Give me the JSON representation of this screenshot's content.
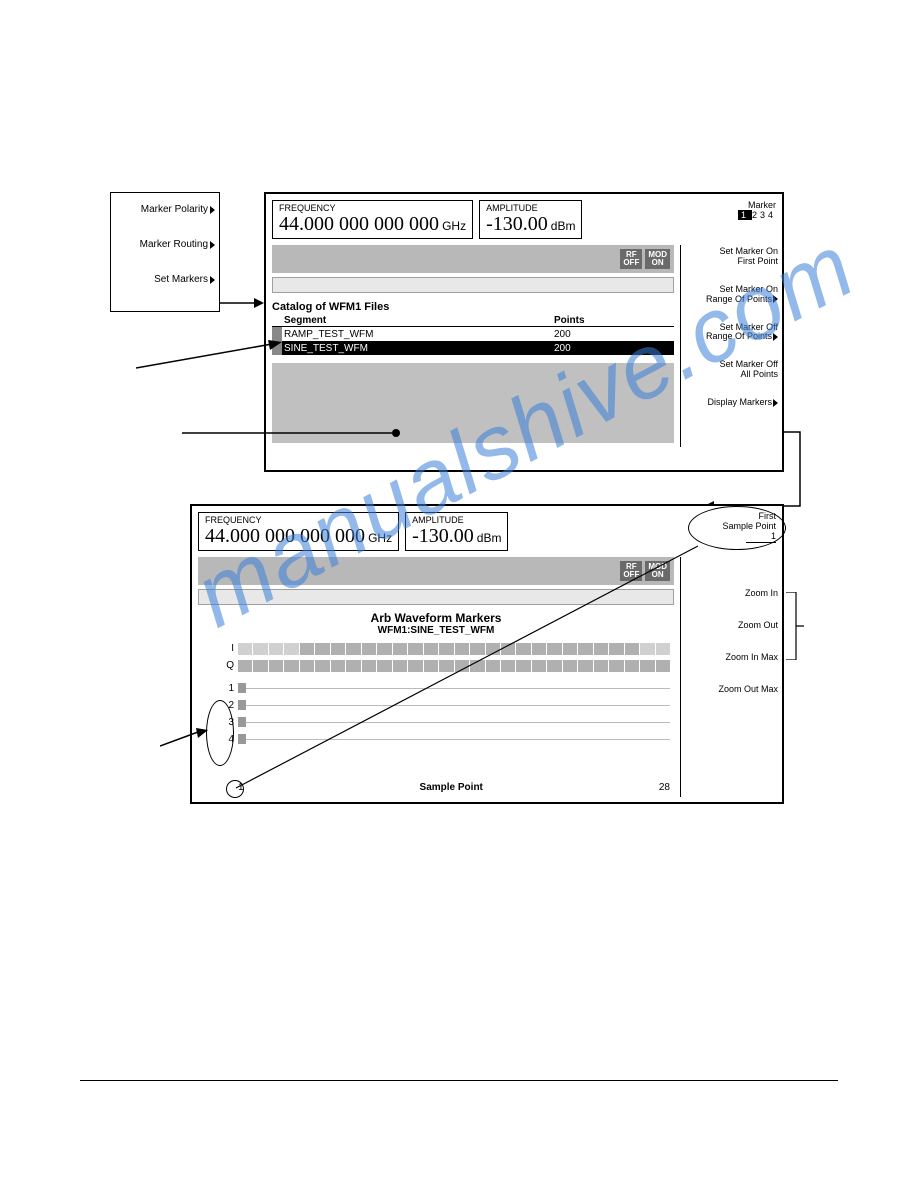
{
  "watermark": "manualshive.com",
  "left_menu": {
    "items": [
      "Marker Polarity",
      "Marker Routing",
      "Set Markers"
    ]
  },
  "panel1": {
    "frequency": {
      "label": "FREQUENCY",
      "value": "44.000 000 000 000",
      "unit": "GHz"
    },
    "amplitude": {
      "label": "AMPLITUDE",
      "value": "-130.00",
      "unit": "dBm"
    },
    "badges": {
      "rf": "RF",
      "rf_off": "OFF",
      "mod": "MOD",
      "mod_on": "ON"
    },
    "softkeys": {
      "marker_label": "Marker",
      "markers": [
        "1",
        "2",
        "3",
        "4"
      ],
      "sk1": "Set Marker On\nFirst Point",
      "sk2": "Set Marker On\nRange Of Points",
      "sk3": "Set Marker Off\nRange Of Points",
      "sk4": "Set Marker Off\nAll Points",
      "sk5": "Display Markers"
    },
    "catalog": {
      "title": "Catalog of WFM1 Files",
      "col_segment": "Segment",
      "col_points": "Points",
      "rows": [
        {
          "name": "RAMP_TEST_WFM",
          "points": "200",
          "selected": false
        },
        {
          "name": "SINE_TEST_WFM",
          "points": "200",
          "selected": true
        }
      ]
    }
  },
  "panel2": {
    "frequency": {
      "label": "FREQUENCY",
      "value": "44.000 000 000 000",
      "unit": "GHz"
    },
    "amplitude": {
      "label": "AMPLITUDE",
      "value": "-130.00",
      "unit": "dBm"
    },
    "badges": {
      "rf": "RF",
      "rf_off": "OFF",
      "mod": "MOD",
      "mod_on": "ON"
    },
    "softkeys": {
      "sk1a": "First",
      "sk1b": "Sample Point",
      "sk1c": "1",
      "sk2": "Zoom In",
      "sk3": "Zoom Out",
      "sk4": "Zoom In Max",
      "sk5": "Zoom Out Max"
    },
    "chart": {
      "title": "Arb Waveform Markers",
      "subtitle": "WFM1:SINE_TEST_WFM",
      "y_labels": [
        "I",
        "Q",
        "1",
        "2",
        "3",
        "4"
      ],
      "x_start": "1",
      "x_end": "28",
      "x_caption": "Sample Point"
    }
  }
}
